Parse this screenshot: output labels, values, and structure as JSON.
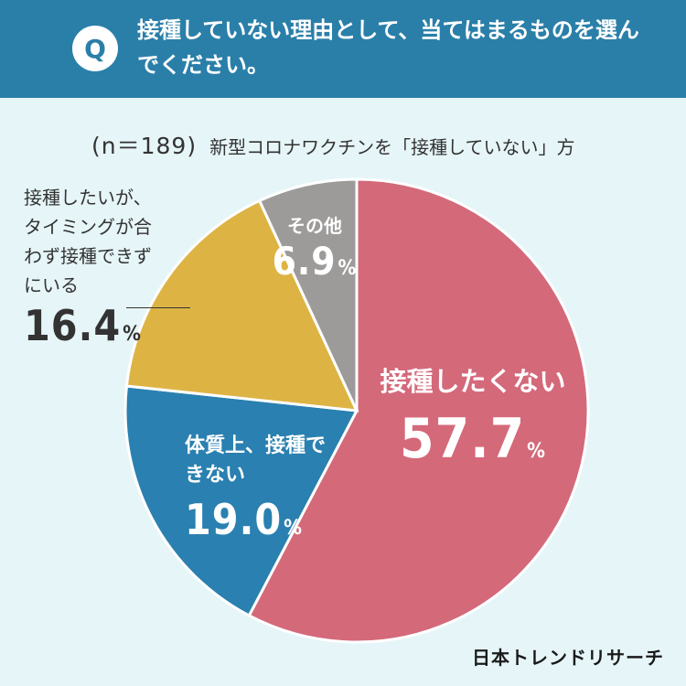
{
  "header": {
    "badge": "Q",
    "question": "接種していない理由として、当てはまるものを選んでください。"
  },
  "subtitle": {
    "sample": "(n＝189)",
    "description": "新型コロナワクチンを「接種していない」方"
  },
  "brand": "日本トレンドリサーチ",
  "chart_data": {
    "type": "pie",
    "title": "接種していない理由として、当てはまるものを選んでください。",
    "n": 189,
    "start": "12 o'clock, clockwise",
    "slices": [
      {
        "label": "接種したくない",
        "value": 57.7,
        "value_text": "57.7",
        "color": "#d4697a"
      },
      {
        "label": "体質上、接種できない",
        "value": 19.0,
        "value_text": "19.0",
        "color": "#2a80b0"
      },
      {
        "label": "接種したいが、タイミングが合わず接種できずにいる",
        "value": 16.4,
        "value_text": "16.4",
        "color": "#ddb444"
      },
      {
        "label": "その他",
        "value": 6.9,
        "value_text": "6.9",
        "color": "#9c9b9a"
      }
    ],
    "unit": "%"
  }
}
